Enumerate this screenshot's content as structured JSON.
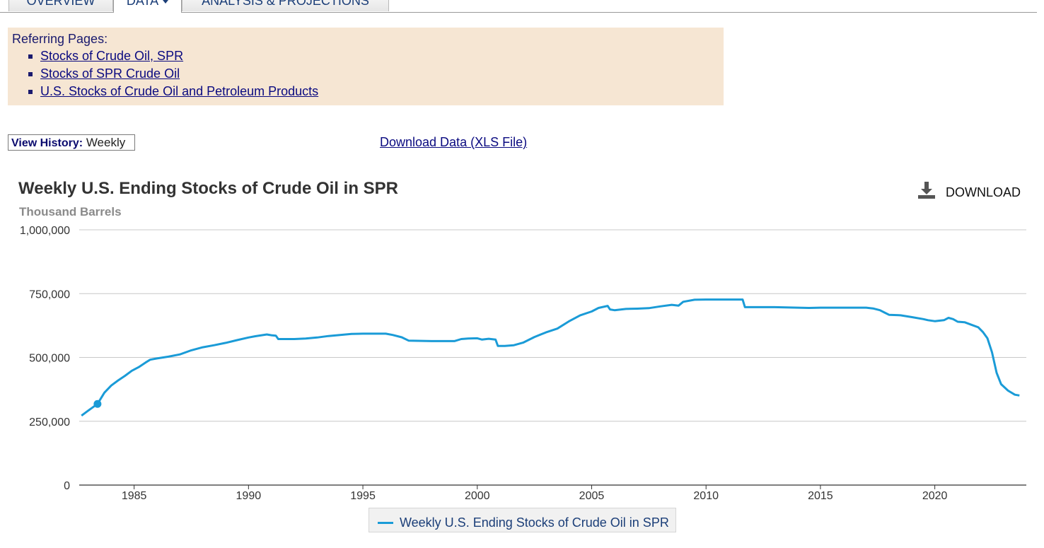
{
  "tabs": [
    {
      "label": "OVERVIEW"
    },
    {
      "label": "DATA"
    },
    {
      "label": "ANALYSIS & PROJECTIONS"
    }
  ],
  "referring": {
    "title": "Referring Pages:",
    "links": [
      "Stocks of Crude Oil, SPR",
      "Stocks of SPR Crude Oil",
      "U.S. Stocks of Crude Oil and Petroleum Products"
    ]
  },
  "view_history": {
    "label": "View History",
    "value": "Weekly"
  },
  "download_xls": "Download Data (XLS File)",
  "chart_header": {
    "download_label": "DOWNLOAD",
    "download_icon": "download-icon"
  },
  "colors": {
    "series": "#1a9bd7",
    "grid": "#c8c8c8",
    "axis": "#333333",
    "link": "#0a0a80",
    "ref_bg": "#f6e6d3"
  },
  "chart_data": {
    "type": "line",
    "title": "Weekly U.S. Ending Stocks of Crude Oil in SPR",
    "ylabel": "Thousand Barrels",
    "xlabel": "",
    "ylim": [
      0,
      1000000
    ],
    "xlim": [
      1982.6,
      2024.0
    ],
    "yticks": [
      0,
      250000,
      500000,
      750000,
      1000000
    ],
    "ytick_labels": [
      "0",
      "250,000",
      "500,000",
      "750,000",
      "1,000,000"
    ],
    "xticks": [
      1985,
      1990,
      1995,
      2000,
      2005,
      2010,
      2015,
      2020
    ],
    "xtick_labels": [
      "1985",
      "1990",
      "1995",
      "2000",
      "2005",
      "2010",
      "2015",
      "2020"
    ],
    "grid": true,
    "legend": "bottom-center",
    "series": [
      {
        "name": "Weekly U.S. Ending Stocks of Crude Oil in SPR",
        "x": [
          1982.7,
          1983.0,
          1983.4,
          1983.7,
          1984.0,
          1984.3,
          1984.6,
          1984.9,
          1985.2,
          1985.5,
          1985.7,
          1986.0,
          1986.5,
          1987.0,
          1987.5,
          1988.0,
          1988.5,
          1989.0,
          1989.5,
          1990.0,
          1990.3,
          1990.5,
          1990.8,
          1991.0,
          1991.2,
          1991.3,
          1992.0,
          1992.5,
          1993.0,
          1993.5,
          1994.0,
          1994.5,
          1995.0,
          1995.5,
          1996.0,
          1996.3,
          1996.7,
          1997.0,
          1998.0,
          1999.0,
          1999.3,
          1999.6,
          2000.0,
          2000.2,
          2000.5,
          2000.8,
          2000.9,
          2001.2,
          2001.6,
          2002.0,
          2002.5,
          2003.0,
          2003.5,
          2004.0,
          2004.5,
          2005.0,
          2005.3,
          2005.7,
          2005.8,
          2006.0,
          2006.5,
          2007.0,
          2007.5,
          2008.0,
          2008.5,
          2008.8,
          2009.0,
          2009.5,
          2010.0,
          2010.5,
          2011.0,
          2011.6,
          2011.7,
          2012.0,
          2013.0,
          2014.0,
          2014.5,
          2015.0,
          2015.5,
          2016.0,
          2017.0,
          2017.3,
          2017.6,
          2017.8,
          2018.0,
          2018.5,
          2019.0,
          2019.5,
          2019.7,
          2020.0,
          2020.4,
          2020.6,
          2020.8,
          2021.0,
          2021.3,
          2021.6,
          2021.9,
          2022.1,
          2022.3,
          2022.5,
          2022.7,
          2022.9,
          2023.2,
          2023.5,
          2023.7
        ],
        "values": [
          272000,
          292000,
          318000,
          362000,
          390000,
          410000,
          428000,
          448000,
          462000,
          480000,
          491000,
          496000,
          503000,
          512000,
          528000,
          540000,
          548000,
          557000,
          568000,
          578000,
          583000,
          586000,
          590000,
          587000,
          585000,
          572000,
          572000,
          574000,
          578000,
          584000,
          588000,
          592000,
          593000,
          593000,
          593000,
          588000,
          579000,
          566000,
          564000,
          564000,
          572000,
          574000,
          575000,
          570000,
          573000,
          570000,
          545000,
          545000,
          548000,
          558000,
          580000,
          598000,
          613000,
          641000,
          665000,
          680000,
          694000,
          702000,
          688000,
          685000,
          690000,
          691000,
          693000,
          700000,
          706000,
          703000,
          718000,
          726000,
          727000,
          727000,
          727000,
          727000,
          697000,
          697000,
          697000,
          695000,
          694000,
          695000,
          695000,
          695000,
          695000,
          692000,
          685000,
          676000,
          667000,
          665000,
          658000,
          650000,
          646000,
          642000,
          646000,
          655000,
          650000,
          640000,
          638000,
          628000,
          618000,
          600000,
          575000,
          520000,
          440000,
          395000,
          370000,
          354000,
          351000
        ]
      }
    ]
  }
}
